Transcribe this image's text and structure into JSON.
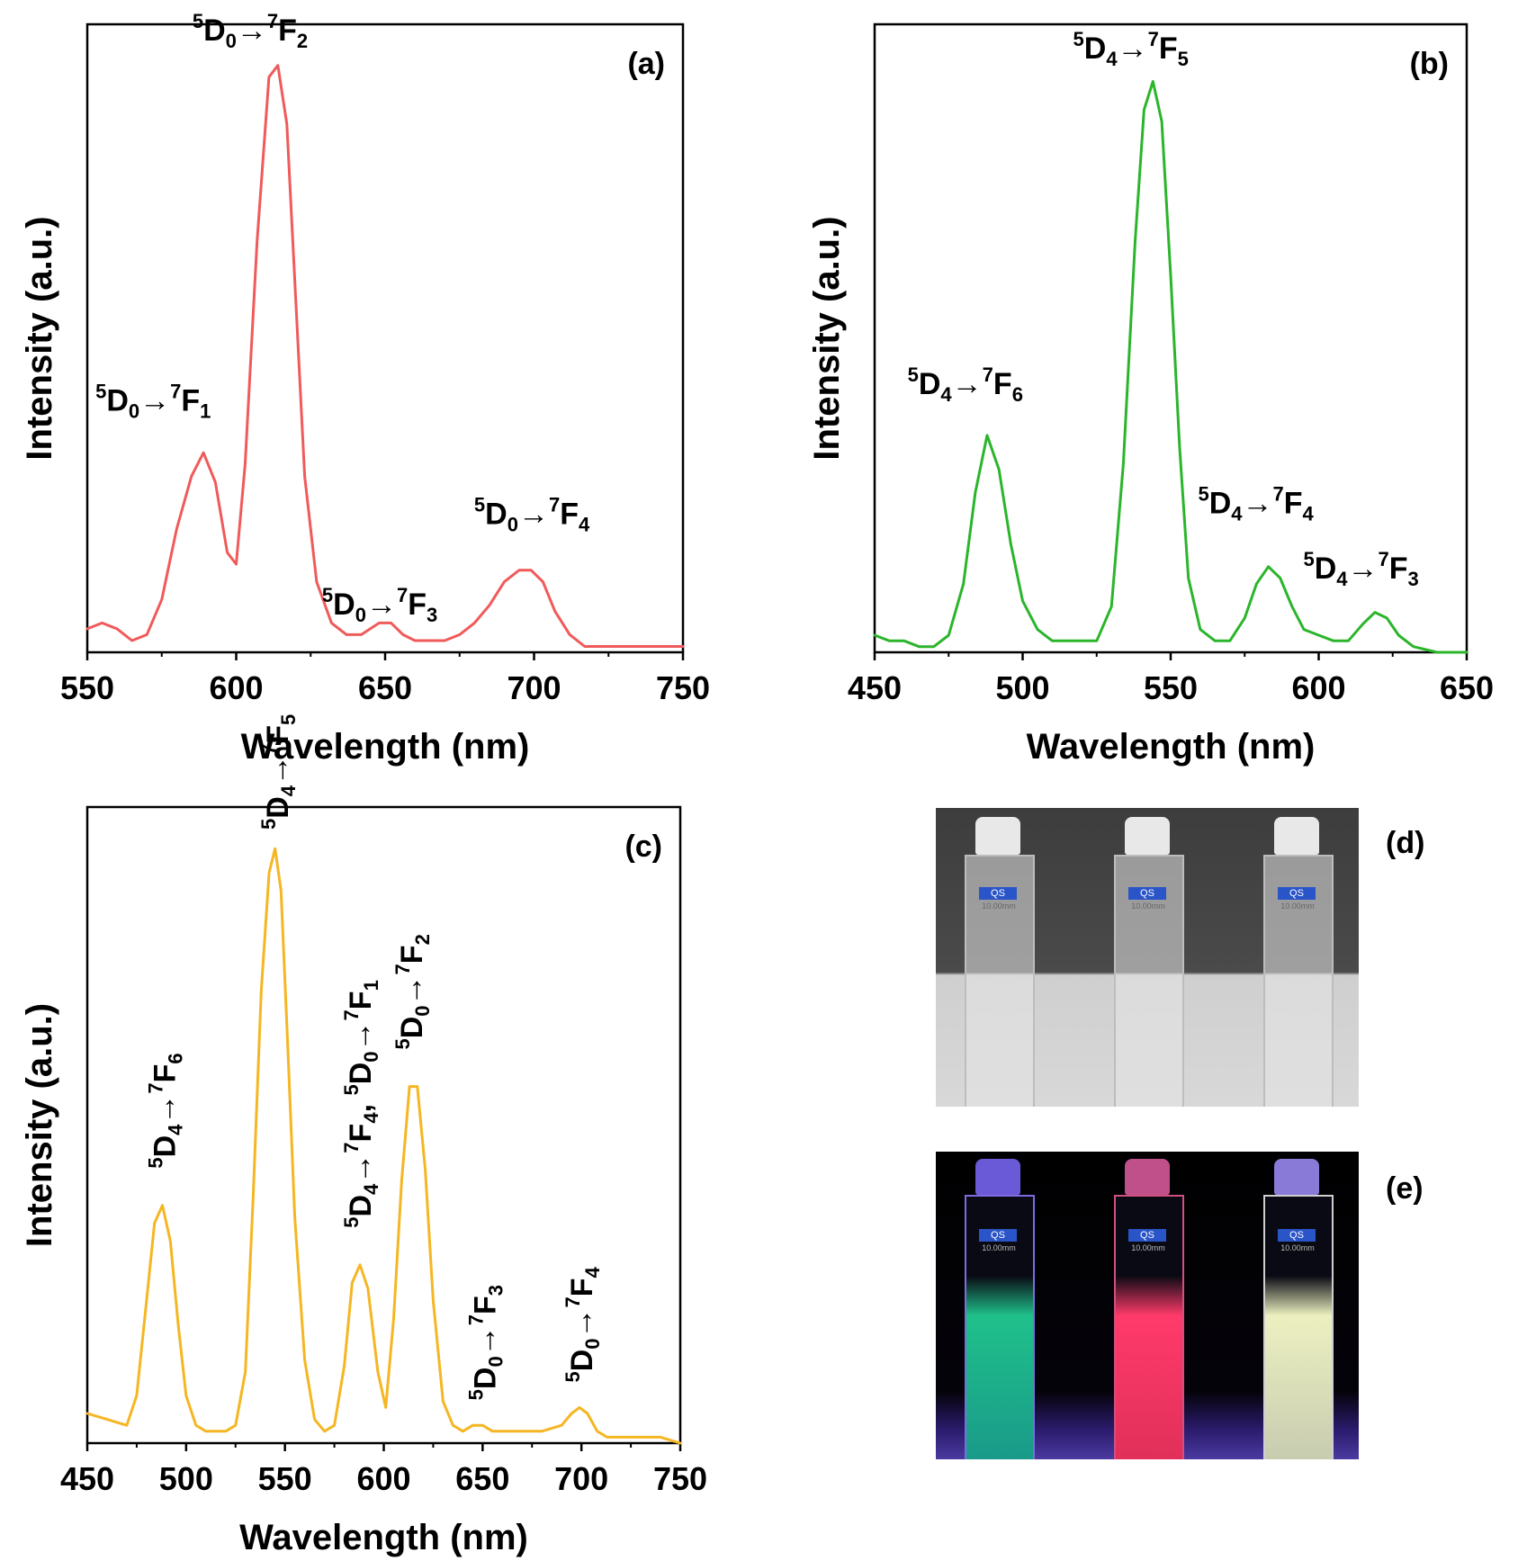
{
  "chart_data": [
    {
      "panel": "(a)",
      "type": "line",
      "color": "#f05a5a",
      "xlabel": "Wavelength (nm)",
      "ylabel": "Intensity (a.u.)",
      "xlim": [
        550,
        750
      ],
      "ylim": [
        0,
        1.07
      ],
      "xticks": [
        "550",
        "600",
        "650",
        "700",
        "750"
      ],
      "x": [
        550,
        555,
        560,
        565,
        570,
        575,
        580,
        585,
        589,
        593,
        597,
        600,
        603,
        607,
        611,
        614,
        617,
        620,
        623,
        627,
        632,
        637,
        642,
        648,
        652,
        656,
        660,
        665,
        670,
        675,
        680,
        685,
        690,
        695,
        699,
        703,
        707,
        712,
        717,
        722,
        730,
        740,
        750
      ],
      "y": [
        0.04,
        0.05,
        0.04,
        0.02,
        0.03,
        0.09,
        0.21,
        0.3,
        0.34,
        0.29,
        0.17,
        0.15,
        0.32,
        0.7,
        0.98,
        1.0,
        0.9,
        0.6,
        0.3,
        0.12,
        0.05,
        0.03,
        0.03,
        0.05,
        0.05,
        0.03,
        0.02,
        0.02,
        0.02,
        0.03,
        0.05,
        0.08,
        0.12,
        0.14,
        0.14,
        0.12,
        0.07,
        0.03,
        0.01,
        0.01,
        0.01,
        0.01,
        0.01
      ],
      "annotations": [
        {
          "pre": "5",
          "a": "D",
          "asub": "0",
          "arrow": "→",
          "bsup": "7",
          "b": "F",
          "bsub": "1",
          "at": [
            589,
            0.39
          ]
        },
        {
          "pre": "5",
          "a": "D",
          "asub": "0",
          "arrow": "→",
          "bsup": "7",
          "b": "F",
          "bsub": "2",
          "at": [
            614,
            1.05
          ]
        },
        {
          "pre": "5",
          "a": "D",
          "asub": "0",
          "arrow": "→",
          "bsup": "7",
          "b": "F",
          "bsub": "3",
          "at": [
            653,
            0.08
          ]
        },
        {
          "pre": "5",
          "a": "D",
          "asub": "0",
          "arrow": "→",
          "bsup": "7",
          "b": "F",
          "bsub": "4",
          "at": [
            698,
            0.2
          ]
        }
      ]
    },
    {
      "panel": "(b)",
      "type": "line",
      "color": "#2bb52b",
      "xlabel": "Wavelength (nm)",
      "ylabel": "Intensity (a.u.)",
      "xlim": [
        450,
        650
      ],
      "ylim": [
        0,
        1.1
      ],
      "xticks": [
        "450",
        "500",
        "550",
        "600",
        "650"
      ],
      "x": [
        450,
        455,
        460,
        465,
        470,
        475,
        480,
        484,
        488,
        492,
        496,
        500,
        505,
        510,
        515,
        520,
        525,
        530,
        534,
        538,
        541,
        544,
        547,
        550,
        553,
        556,
        560,
        565,
        570,
        575,
        579,
        583,
        587,
        591,
        595,
        600,
        605,
        610,
        615,
        619,
        623,
        627,
        632,
        640,
        650
      ],
      "y": [
        0.03,
        0.02,
        0.02,
        0.01,
        0.01,
        0.03,
        0.12,
        0.28,
        0.38,
        0.32,
        0.19,
        0.09,
        0.04,
        0.02,
        0.02,
        0.02,
        0.02,
        0.08,
        0.33,
        0.72,
        0.95,
        1.0,
        0.93,
        0.66,
        0.36,
        0.13,
        0.04,
        0.02,
        0.02,
        0.06,
        0.12,
        0.15,
        0.13,
        0.08,
        0.04,
        0.03,
        0.02,
        0.02,
        0.05,
        0.07,
        0.06,
        0.03,
        0.01,
        0.0,
        0.0
      ],
      "annotations": [
        {
          "pre": "5",
          "a": "D",
          "asub": "4",
          "arrow": "→",
          "bsup": "7",
          "b": "F",
          "bsub": "6",
          "at": [
            490,
            0.43
          ]
        },
        {
          "pre": "5",
          "a": "D",
          "asub": "4",
          "arrow": "→",
          "bsup": "7",
          "b": "F",
          "bsub": "5",
          "at": [
            545,
            1.04
          ]
        },
        {
          "pre": "5",
          "a": "D",
          "asub": "4",
          "arrow": "→",
          "bsup": "7",
          "b": "F",
          "bsub": "4",
          "at": [
            586,
            0.22
          ]
        },
        {
          "pre": "5",
          "a": "D",
          "asub": "4",
          "arrow": "→",
          "bsup": "7",
          "b": "F",
          "bsub": "3",
          "at": [
            624,
            0.11
          ]
        }
      ]
    },
    {
      "panel": "(c)",
      "type": "line",
      "color": "#f5b623",
      "xlabel": "Wavelength (nm)",
      "ylabel": "Intensity (a.u.)",
      "xlim": [
        450,
        750
      ],
      "ylim": [
        0,
        1.07
      ],
      "xticks": [
        "450",
        "500",
        "550",
        "600",
        "650",
        "700",
        "750"
      ],
      "x": [
        450,
        460,
        470,
        475,
        480,
        484,
        488,
        492,
        496,
        500,
        505,
        510,
        515,
        520,
        525,
        530,
        534,
        538,
        542,
        545,
        548,
        551,
        555,
        560,
        565,
        570,
        575,
        580,
        584,
        588,
        592,
        597,
        601,
        605,
        609,
        613,
        617,
        621,
        625,
        630,
        635,
        640,
        645,
        650,
        655,
        660,
        670,
        680,
        690,
        695,
        699,
        703,
        708,
        713,
        720,
        730,
        740,
        750
      ],
      "y": [
        0.05,
        0.04,
        0.03,
        0.08,
        0.24,
        0.37,
        0.4,
        0.34,
        0.2,
        0.08,
        0.03,
        0.02,
        0.02,
        0.02,
        0.03,
        0.12,
        0.42,
        0.76,
        0.96,
        1.0,
        0.93,
        0.7,
        0.38,
        0.14,
        0.04,
        0.02,
        0.03,
        0.13,
        0.27,
        0.3,
        0.26,
        0.12,
        0.06,
        0.21,
        0.44,
        0.6,
        0.6,
        0.46,
        0.24,
        0.07,
        0.03,
        0.02,
        0.03,
        0.03,
        0.02,
        0.02,
        0.02,
        0.02,
        0.03,
        0.05,
        0.06,
        0.05,
        0.02,
        0.01,
        0.01,
        0.01,
        0.01,
        0.0
      ],
      "annotations": [
        {
          "pre": "5",
          "a": "D",
          "asub": "4",
          "arrow": "→",
          "bsup": "7",
          "b": "F",
          "bsub": "6",
          "at": [
            489,
            0.45
          ]
        },
        {
          "pre": "5",
          "a": "D",
          "asub": "4",
          "arrow": "→",
          "bsup": "7",
          "b": "F",
          "bsub": "5",
          "at": [
            546,
            1.02
          ]
        },
        {
          "pre": "5",
          "a": "D",
          "asub": "4",
          "arrow": "→",
          "bsup": "7",
          "b": "F",
          "bsub": "4",
          "mid": ", ",
          "pre2": "5",
          "c": "D",
          "csub": "0",
          "arrow2": "→",
          "dsup": "7",
          "d": "F",
          "dsub": "1",
          "at": [
            588,
            0.35
          ]
        },
        {
          "pre": "5",
          "a": "D",
          "asub": "0",
          "arrow": "→",
          "bsup": "7",
          "b": "F",
          "bsub": "2",
          "at": [
            614,
            0.65
          ]
        },
        {
          "pre": "5",
          "a": "D",
          "asub": "0",
          "arrow": "→",
          "bsup": "7",
          "b": "F",
          "bsub": "3",
          "at": [
            651,
            0.06
          ]
        },
        {
          "pre": "5",
          "a": "D",
          "asub": "0",
          "arrow": "→",
          "bsup": "7",
          "b": "F",
          "bsub": "4",
          "at": [
            700,
            0.09
          ]
        }
      ]
    }
  ],
  "photos": [
    {
      "label": "(d)",
      "lighting": "daylight",
      "cuvette_text": [
        "QS",
        "10.00mm"
      ]
    },
    {
      "label": "(e)",
      "lighting": "UV",
      "cuvette_text": [
        "QS",
        "10.00mm"
      ],
      "glow_colors": [
        "#2fe0a0",
        "#ff3a6a",
        "#f2f2c8"
      ]
    }
  ]
}
